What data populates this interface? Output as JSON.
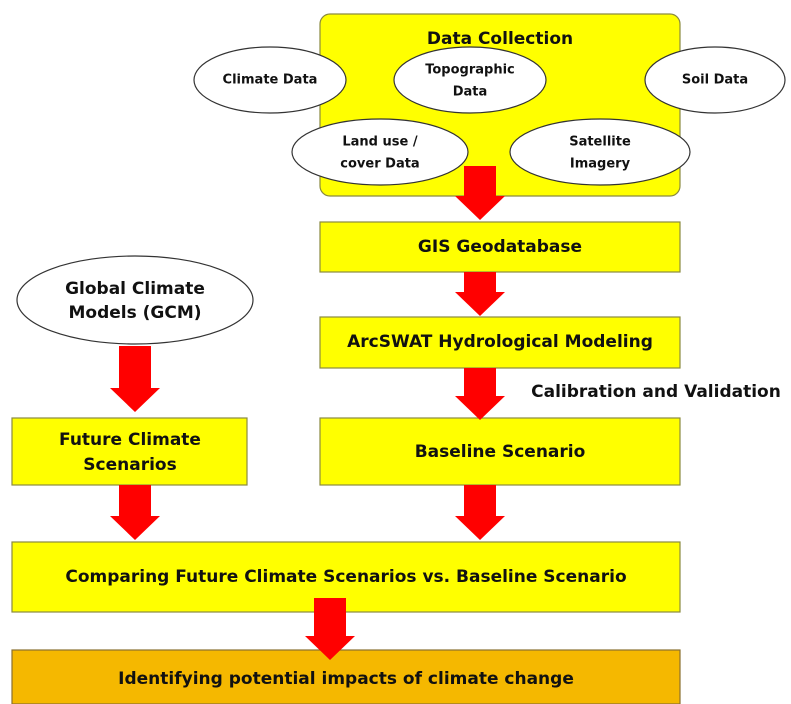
{
  "nodes": {
    "data_collection": {
      "label": "Data Collection"
    },
    "climate_data": {
      "lines": [
        "Climate Data"
      ]
    },
    "topographic_data": {
      "lines": [
        "Topographic",
        "Data"
      ]
    },
    "soil_data": {
      "lines": [
        "Soil Data"
      ]
    },
    "land_use": {
      "lines": [
        "Land use /",
        "cover Data"
      ]
    },
    "satellite": {
      "lines": [
        "Satellite",
        "Imagery"
      ]
    },
    "gis": {
      "lines": [
        "GIS Geodatabase"
      ]
    },
    "arcswat": {
      "lines": [
        "ArcSWAT Hydrological Modeling"
      ]
    },
    "gcm": {
      "lines": [
        "Global Climate",
        "Models (GCM)"
      ]
    },
    "future": {
      "lines": [
        "Future Climate",
        "Scenarios"
      ]
    },
    "baseline": {
      "lines": [
        "Baseline Scenario"
      ]
    },
    "comparing": {
      "lines": [
        "Comparing Future Climate Scenarios vs. Baseline Scenario"
      ]
    },
    "impacts": {
      "lines": [
        "Identifying potential impacts of climate change"
      ]
    }
  },
  "edge_labels": {
    "calibration": "Calibration and Validation"
  }
}
